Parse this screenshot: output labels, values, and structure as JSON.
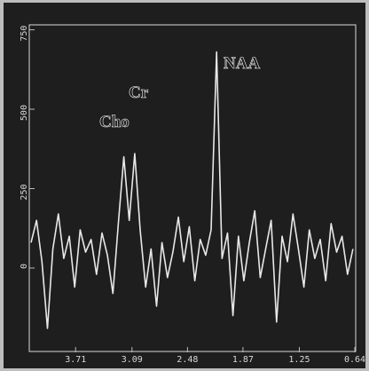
{
  "chart_data": {
    "type": "line",
    "annotations": [
      "Cho",
      "Cr",
      "NAA"
    ],
    "x": [
      4.2,
      4.14,
      4.08,
      4.02,
      3.96,
      3.9,
      3.84,
      3.78,
      3.72,
      3.66,
      3.6,
      3.54,
      3.48,
      3.42,
      3.36,
      3.3,
      3.24,
      3.18,
      3.12,
      3.06,
      3.0,
      2.94,
      2.88,
      2.82,
      2.76,
      2.7,
      2.64,
      2.58,
      2.52,
      2.46,
      2.4,
      2.34,
      2.28,
      2.22,
      2.16,
      2.1,
      2.04,
      1.98,
      1.92,
      1.86,
      1.8,
      1.74,
      1.68,
      1.62,
      1.56,
      1.5,
      1.44,
      1.38,
      1.32,
      1.26,
      1.2,
      1.14,
      1.08,
      1.02,
      0.96,
      0.9,
      0.84,
      0.78,
      0.72,
      0.66
    ],
    "series": [
      {
        "color": "#e8e8e8",
        "values": [
          80,
          150,
          20,
          -190,
          60,
          170,
          30,
          100,
          -60,
          120,
          50,
          90,
          -20,
          110,
          40,
          -80,
          140,
          350,
          150,
          360,
          120,
          -60,
          60,
          -120,
          80,
          -30,
          50,
          160,
          20,
          130,
          -40,
          90,
          40,
          120,
          680,
          30,
          110,
          -150,
          100,
          -40,
          80,
          180,
          -30,
          60,
          150,
          -170,
          100,
          20,
          170,
          60,
          -60,
          120,
          30,
          90,
          -40,
          140,
          50,
          100,
          -20,
          60
        ]
      }
    ],
    "xlim": [
      4.2,
      0.64
    ],
    "xticks": [
      {
        "value": 3.71,
        "label": "3.71"
      },
      {
        "value": 3.09,
        "label": "3.09"
      },
      {
        "value": 2.48,
        "label": "2.48"
      },
      {
        "value": 1.87,
        "label": "1.87"
      },
      {
        "value": 1.25,
        "label": "1.25"
      },
      {
        "value": 0.64,
        "label": "0.64"
      }
    ],
    "ylim": [
      -260,
      760
    ],
    "yticks": [
      0,
      250,
      500,
      750
    ]
  }
}
